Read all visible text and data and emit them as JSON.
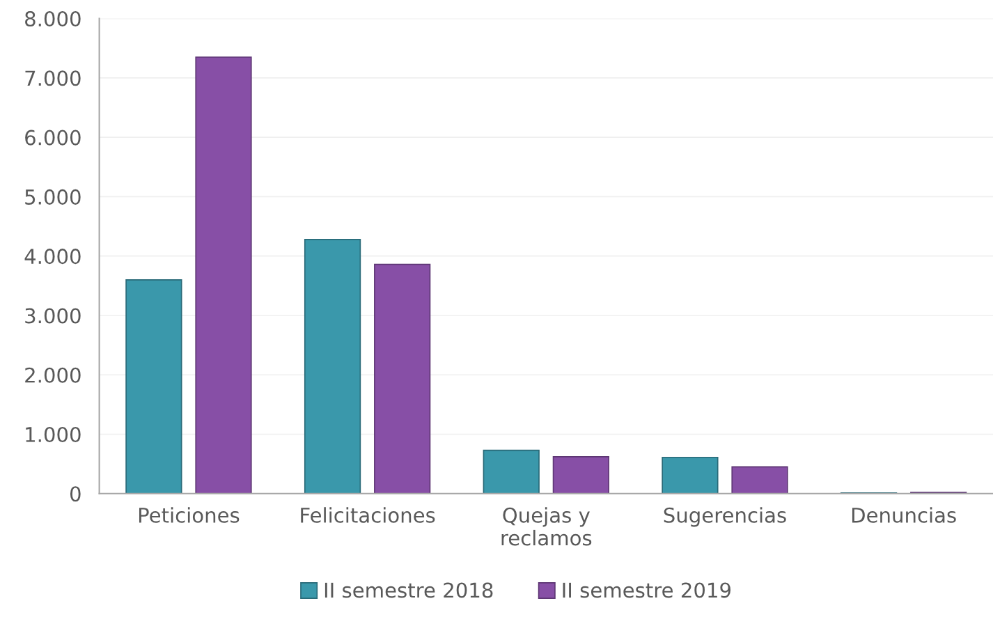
{
  "chart_data": {
    "type": "bar",
    "categories": [
      "Peticiones",
      "Felicitaciones",
      "Quejas y\nreclamos",
      "Sugerencias",
      "Denuncias"
    ],
    "series": [
      {
        "name": "II semestre 2018",
        "color": "#3a98ab",
        "values": [
          3600,
          4280,
          730,
          610,
          10
        ]
      },
      {
        "name": "II semestre 2019",
        "color": "#874fa6",
        "values": [
          7350,
          3860,
          620,
          450,
          20
        ]
      }
    ],
    "ylim": [
      0,
      8000
    ],
    "yticks": [
      {
        "value": 0,
        "label": "0"
      },
      {
        "value": 1000,
        "label": "1.000"
      },
      {
        "value": 2000,
        "label": "2.000"
      },
      {
        "value": 3000,
        "label": "3.000"
      },
      {
        "value": 4000,
        "label": "4.000"
      },
      {
        "value": 5000,
        "label": "5.000"
      },
      {
        "value": 6000,
        "label": "6.000"
      },
      {
        "value": 7000,
        "label": "7.000"
      },
      {
        "value": 8000,
        "label": "8.000"
      }
    ],
    "grid": "y",
    "legend": "bottom"
  }
}
